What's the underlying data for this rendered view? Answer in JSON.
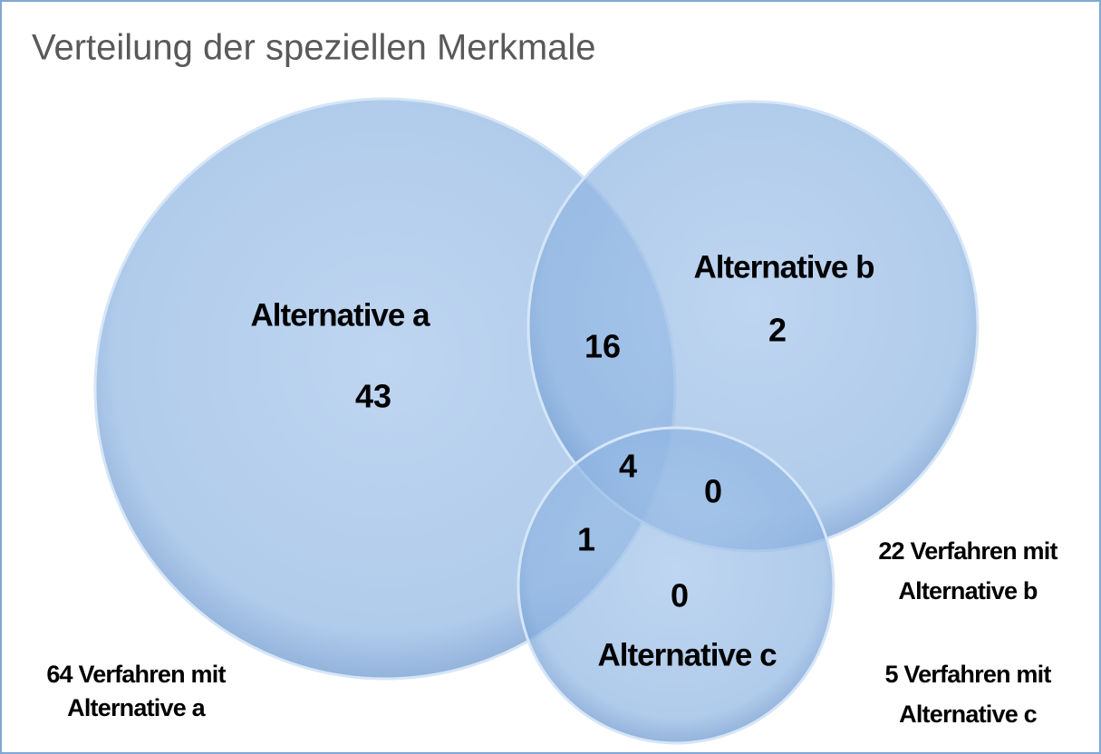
{
  "title": "Verteilung der speziellen Merkmale",
  "sets": [
    {
      "label": "Alternative a",
      "note": [
        "64 Verfahren mit",
        "Alternative a"
      ]
    },
    {
      "label": "Alternative b",
      "note": [
        "22 Verfahren mit",
        "Alternative b"
      ]
    },
    {
      "label": "Alternative c",
      "note": [
        "5 Verfahren mit",
        "Alternative c"
      ]
    }
  ],
  "regions": [
    43,
    2,
    0,
    16,
    1,
    0,
    4
  ]
}
